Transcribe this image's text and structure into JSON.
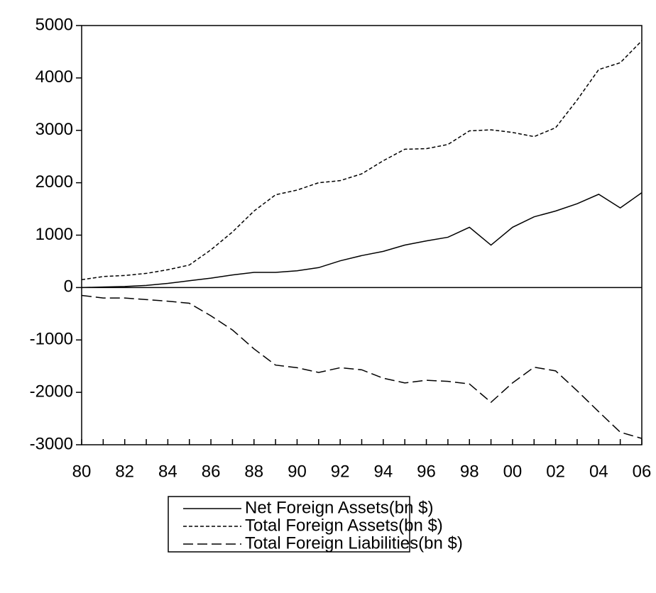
{
  "chart_data": {
    "type": "line",
    "categories": [
      "80",
      null,
      "82",
      null,
      "84",
      null,
      "86",
      null,
      "88",
      null,
      "90",
      null,
      "92",
      null,
      "94",
      null,
      "96",
      null,
      "98",
      null,
      "00",
      null,
      "02",
      null,
      "04",
      null,
      "06"
    ],
    "series": [
      {
        "name": "Net Foreign Assets(bn $)",
        "color": "#000000",
        "dash": "none",
        "values": [
          0,
          10,
          20,
          40,
          80,
          130,
          180,
          240,
          290,
          290,
          320,
          380,
          510,
          610,
          690,
          810,
          890,
          960,
          1150,
          810,
          1150,
          1350,
          1460,
          1600,
          1780,
          1520,
          1810
        ]
      },
      {
        "name": "Total Foreign Assets(bn $)",
        "color": "#000000",
        "dash": "5,3",
        "values": [
          150,
          210,
          230,
          270,
          340,
          430,
          720,
          1060,
          1460,
          1770,
          1860,
          2000,
          2040,
          2170,
          2420,
          2640,
          2650,
          2730,
          2990,
          3010,
          2960,
          2880,
          3050,
          3580,
          4160,
          4290,
          4710
        ]
      },
      {
        "name": "Total Foreign Liabilities(bn $)",
        "color": "#000000",
        "dash": "14,6",
        "values": [
          -150,
          -200,
          -200,
          -230,
          -260,
          -300,
          -540,
          -810,
          -1170,
          -1480,
          -1530,
          -1620,
          -1530,
          -1570,
          -1730,
          -1820,
          -1770,
          -1790,
          -1840,
          -2190,
          -1820,
          -1520,
          -1590,
          -1970,
          -2370,
          -2760,
          -2880
        ]
      }
    ],
    "ylim": [
      -3000,
      5000
    ],
    "yticks": [
      -3000,
      -2000,
      -1000,
      0,
      1000,
      2000,
      3000,
      4000,
      5000
    ],
    "zero_line": true,
    "legend": "bottom"
  }
}
